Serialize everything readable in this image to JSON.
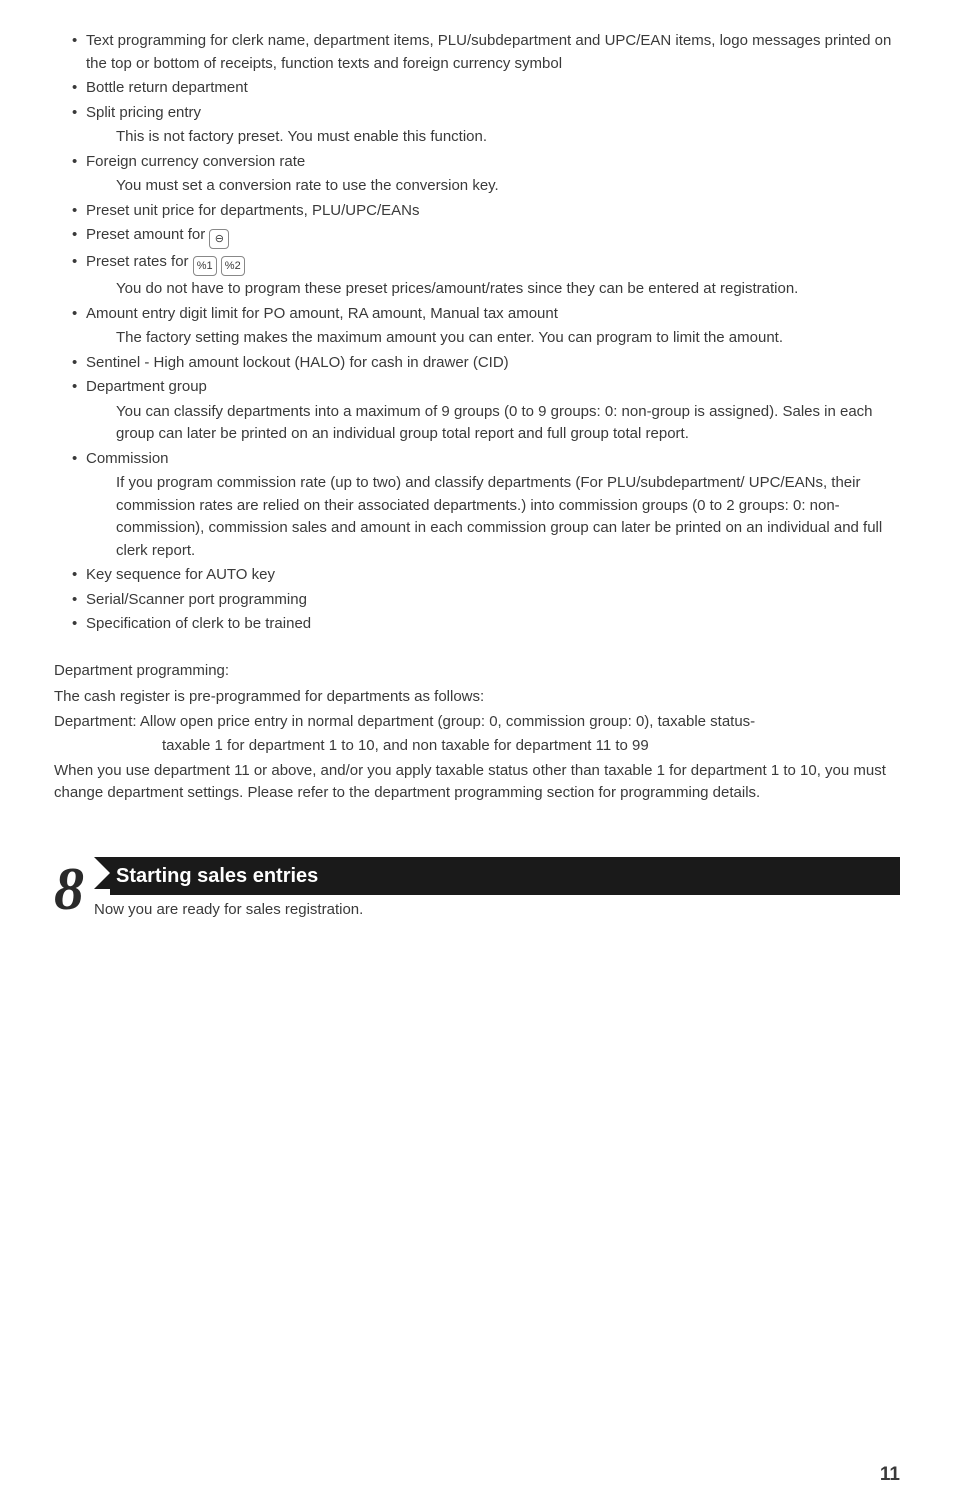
{
  "bullets_group": [
    {
      "text": "Text programming for clerk name, department items, PLU/subdepartment and UPC/EAN items, logo messages printed on the top or bottom of receipts, function texts and foreign currency symbol"
    },
    {
      "text": "Bottle return department"
    },
    {
      "text": "Split pricing entry",
      "sub": [
        "This is not factory preset.  You must enable this function."
      ]
    },
    {
      "text": "Foreign currency conversion rate",
      "sub": [
        "You must set a conversion rate to use the conversion key."
      ]
    },
    {
      "text": "Preset unit price for departments, PLU/UPC/EANs"
    },
    {
      "text": "Preset amount for ",
      "keys": [
        "⊖"
      ]
    },
    {
      "text": "Preset rates for ",
      "keys": [
        "%1",
        "%2"
      ],
      "sub": [
        "You do not have to program these preset prices/amount/rates since they can be entered at registration."
      ]
    },
    {
      "text": "Amount entry digit limit for PO amount, RA amount, Manual tax amount",
      "sub": [
        "The factory setting makes the maximum amount you can enter.  You can program to limit the amount."
      ]
    },
    {
      "text": "Sentinel - High amount lockout (HALO) for cash in drawer (CID)"
    },
    {
      "text": "Department group",
      "sub": [
        "You can classify departments into a maximum of 9 groups (0 to 9 groups: 0: non-group is assigned).  Sales in each group can later be printed on an individual group total report and full group total report."
      ]
    },
    {
      "text": "Commission",
      "sub": [
        "If you program commission rate (up to two) and classify departments (For PLU/subdepartment/ UPC/EANs, their commission rates are relied on their associated departments.) into commission groups (0 to 2 groups: 0: non-commission), commission sales and amount in each commission group can later be printed on an individual and full clerk report."
      ]
    },
    {
      "text": "Key sequence for AUTO key"
    },
    {
      "text": "Serial/Scanner port programming"
    },
    {
      "text": "Specification of clerk to be trained"
    }
  ],
  "dept": {
    "heading": "Department programming:",
    "line1": "The cash register is pre-programmed for departments as follows:",
    "line2": "Department:  Allow open price entry in normal department (group: 0, commission group: 0), taxable status-",
    "line2_indent": "taxable 1 for department 1 to 10, and non taxable for department 11 to 99",
    "line3": "When you use department 11 or above, and/or you apply taxable status other than taxable 1 for department 1 to 10, you must change department settings.  Please refer to the department programming section for programming details."
  },
  "section8": {
    "num": "8",
    "title": "Starting sales entries",
    "sub": "Now you are ready for sales registration."
  },
  "page_number": "11"
}
